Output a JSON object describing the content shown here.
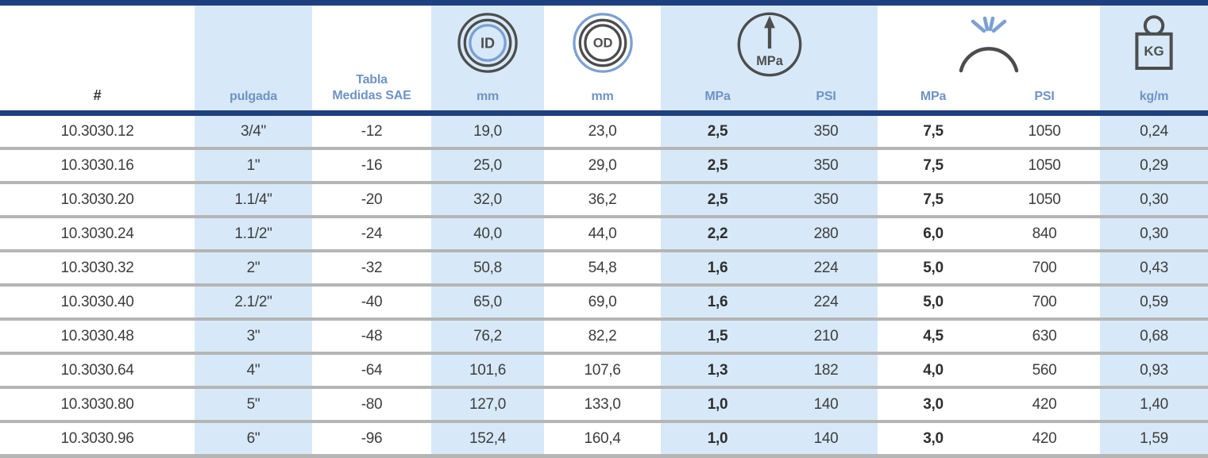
{
  "table": {
    "column_ids": [
      "part-number",
      "inch-size",
      "sae-size",
      "id-mm",
      "od-mm",
      "working-pressure-mpa",
      "working-pressure-psi",
      "burst-pressure-mpa",
      "burst-pressure-psi",
      "weight-kg-m"
    ],
    "band_columns": [
      1,
      3,
      5,
      6,
      9
    ],
    "bold_columns": [
      5,
      7
    ],
    "header": {
      "part_label": "#",
      "inch_label": "pulgada",
      "sae_label_line1": "Tabla",
      "sae_label_line2": "Medidas SAE",
      "id_unit": "mm",
      "od_unit": "mm",
      "working_pressure_mpa_unit": "MPa",
      "working_pressure_psi_unit": "PSI",
      "burst_pressure_mpa_unit": "MPa",
      "burst_pressure_psi_unit": "PSI",
      "weight_unit": "kg/m",
      "icons": {
        "id_icon_label": "ID",
        "od_icon_label": "OD",
        "gauge_icon_label": "MPa",
        "weight_icon_label": "KG"
      }
    },
    "rows": [
      [
        "10.3030.12",
        "3/4\"",
        "-12",
        "19,0",
        "23,0",
        "2,5",
        "350",
        "7,5",
        "1050",
        "0,24"
      ],
      [
        "10.3030.16",
        "1\"",
        "-16",
        "25,0",
        "29,0",
        "2,5",
        "350",
        "7,5",
        "1050",
        "0,29"
      ],
      [
        "10.3030.20",
        "1.1/4\"",
        "-20",
        "32,0",
        "36,2",
        "2,5",
        "350",
        "7,5",
        "1050",
        "0,30"
      ],
      [
        "10.3030.24",
        "1.1/2\"",
        "-24",
        "40,0",
        "44,0",
        "2,2",
        "280",
        "6,0",
        "840",
        "0,30"
      ],
      [
        "10.3030.32",
        "2\"",
        "-32",
        "50,8",
        "54,8",
        "1,6",
        "224",
        "5,0",
        "700",
        "0,43"
      ],
      [
        "10.3030.40",
        "2.1/2\"",
        "-40",
        "65,0",
        "69,0",
        "1,6",
        "224",
        "5,0",
        "700",
        "0,59"
      ],
      [
        "10.3030.48",
        "3\"",
        "-48",
        "76,2",
        "82,2",
        "1,5",
        "210",
        "4,5",
        "630",
        "0,68"
      ],
      [
        "10.3030.64",
        "4\"",
        "-64",
        "101,6",
        "107,6",
        "1,3",
        "182",
        "4,0",
        "560",
        "0,93"
      ],
      [
        "10.3030.80",
        "5\"",
        "-80",
        "127,0",
        "133,0",
        "1,0",
        "140",
        "3,0",
        "420",
        "1,40"
      ],
      [
        "10.3030.96",
        "6\"",
        "-96",
        "152,4",
        "160,4",
        "1,0",
        "140",
        "3,0",
        "420",
        "1,59"
      ]
    ],
    "colors": {
      "navy_border": "#1e4080",
      "band_blue": "#d7e9f8",
      "header_text_blue": "#6e93c6",
      "icon_dark": "#4d4d4d",
      "icon_blue": "#7aa0d4",
      "separator_gray": "#b5b5b5",
      "value_text": "#3d3d3d"
    }
  }
}
